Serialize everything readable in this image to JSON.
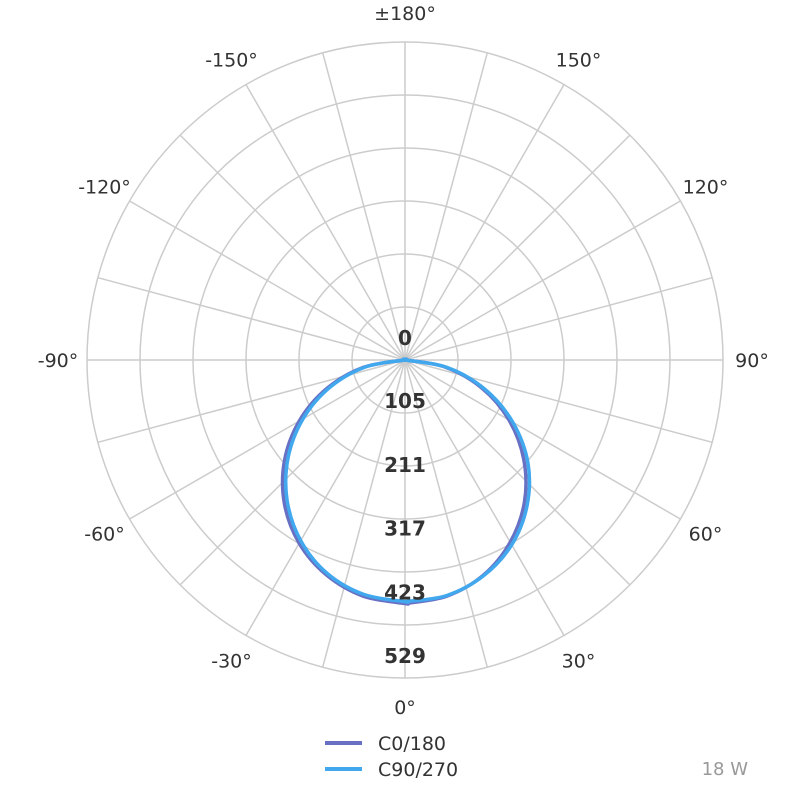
{
  "chart_data": {
    "type": "polar",
    "radial_max": 529,
    "radial_ticks": [
      "0",
      "105",
      "211",
      "317",
      "423",
      "529"
    ],
    "radial_tick_values": [
      0,
      105,
      211,
      317,
      423,
      529
    ],
    "angle_step_deg": 15,
    "angle_labels": [
      {
        "angle": 0,
        "text": "0°"
      },
      {
        "angle": 30,
        "text": "30°"
      },
      {
        "angle": 60,
        "text": "60°"
      },
      {
        "angle": 90,
        "text": "90°"
      },
      {
        "angle": 120,
        "text": "120°"
      },
      {
        "angle": 150,
        "text": "150°"
      },
      {
        "angle": 180,
        "text": "±180°"
      },
      {
        "angle": -150,
        "text": "-150°"
      },
      {
        "angle": -120,
        "text": "-120°"
      },
      {
        "angle": -90,
        "text": "-90°"
      },
      {
        "angle": -60,
        "text": "-60°"
      },
      {
        "angle": -30,
        "text": "-30°"
      }
    ],
    "series": [
      {
        "name": "C0/180",
        "color": "#6870c4",
        "angles": [
          0,
          10,
          20,
          30,
          40,
          50,
          60,
          70,
          80,
          90
        ],
        "right": [
          405,
          399,
          381,
          350,
          309,
          258,
          200,
          136,
          68,
          0
        ],
        "left": [
          405,
          399,
          381,
          352,
          312,
          262,
          203,
          138,
          70,
          0
        ]
      },
      {
        "name": "C90/270",
        "color": "#41a8ee",
        "angles": [
          0,
          10,
          20,
          30,
          40,
          50,
          60,
          70,
          80,
          90
        ],
        "right": [
          402,
          398,
          382,
          355,
          316,
          267,
          207,
          141,
          71,
          0
        ],
        "left": [
          402,
          396,
          378,
          347,
          305,
          254,
          196,
          133,
          67,
          0
        ]
      }
    ]
  },
  "power_label": "18 W"
}
